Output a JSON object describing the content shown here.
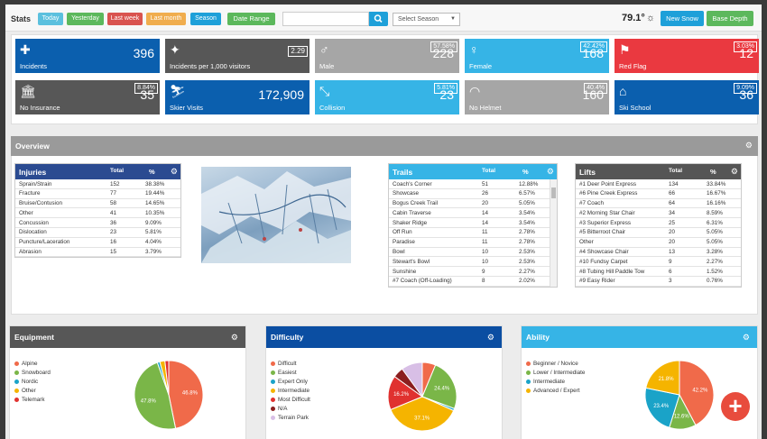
{
  "toolbar": {
    "stats_label": "Stats",
    "filters": [
      {
        "label": "Today",
        "color": "#5bc0de"
      },
      {
        "label": "Yesterday",
        "color": "#5cb85c"
      },
      {
        "label": "Last week",
        "color": "#d9534f"
      },
      {
        "label": "Last month",
        "color": "#f0ad4e"
      },
      {
        "label": "Season",
        "color": "#1ea0d9"
      }
    ],
    "date_range_label": "Date Range",
    "search_placeholder": "",
    "season_select": "Select Season",
    "temperature": "79.1°",
    "new_snow_label": "New Snow",
    "base_depth_label": "Base Depth"
  },
  "tiles": [
    {
      "label": "Incidents",
      "value": "396",
      "badge": "",
      "color": "#0b5fae",
      "icon": "first-aid-icon",
      "glyph": "✚"
    },
    {
      "label": "Incidents per 1,000 visitors",
      "value": "",
      "badge": "2.29",
      "color": "#575757",
      "icon": "magic-wand-icon",
      "glyph": "✦"
    },
    {
      "label": "Male",
      "value": "228",
      "badge": "57.58%",
      "color": "#a6a6a6",
      "icon": "male-icon",
      "glyph": "♂"
    },
    {
      "label": "Female",
      "value": "168",
      "badge": "42.42%",
      "color": "#36b4e6",
      "icon": "female-icon",
      "glyph": "♀"
    },
    {
      "label": "Red Flag",
      "value": "12",
      "badge": "3.03%",
      "color": "#ea3940",
      "icon": "flag-icon",
      "glyph": "⚑"
    },
    {
      "label": "No Insurance",
      "value": "35",
      "badge": "8.84%",
      "color": "#575757",
      "icon": "bank-icon",
      "glyph": "🏛"
    },
    {
      "label": "Skier Visits",
      "value": "172,909",
      "badge": "",
      "color": "#0b5fae",
      "icon": "skier-icon",
      "glyph": "⛷"
    },
    {
      "label": "Collision",
      "value": "23",
      "badge": "5.81%",
      "color": "#36b4e6",
      "icon": "collision-icon",
      "glyph": "⤡"
    },
    {
      "label": "No Helmet",
      "value": "160",
      "badge": "40.4%",
      "color": "#a6a6a6",
      "icon": "helmet-icon",
      "glyph": "◠"
    },
    {
      "label": "Ski School",
      "value": "36",
      "badge": "9.09%",
      "color": "#0b5fae",
      "icon": "home-icon",
      "glyph": "⌂"
    }
  ],
  "overview": {
    "title": "Overview"
  },
  "injuries": {
    "title": "Injuries",
    "col_total": "Total",
    "col_pct": "%",
    "color": "#2b4b91",
    "rows": [
      [
        "Sprain/Strain",
        "152",
        "38.38%"
      ],
      [
        "Fracture",
        "77",
        "19.44%"
      ],
      [
        "Bruise/Contusion",
        "58",
        "14.65%"
      ],
      [
        "Other",
        "41",
        "10.35%"
      ],
      [
        "Concussion",
        "36",
        "9.09%"
      ],
      [
        "Dislocation",
        "23",
        "5.81%"
      ],
      [
        "Puncture/Laceration",
        "16",
        "4.04%"
      ],
      [
        "Abrasion",
        "15",
        "3.79%"
      ]
    ]
  },
  "trails": {
    "title": "Trails",
    "col_total": "Total",
    "col_pct": "%",
    "color": "#36b4e6",
    "rows": [
      [
        "Coach's Corner",
        "51",
        "12.88%"
      ],
      [
        "Showcase",
        "26",
        "6.57%"
      ],
      [
        "Bogus Creek Trail",
        "20",
        "5.05%"
      ],
      [
        "Cabin Traverse",
        "14",
        "3.54%"
      ],
      [
        "Shaker Ridge",
        "14",
        "3.54%"
      ],
      [
        "Off Run",
        "11",
        "2.78%"
      ],
      [
        "Paradise",
        "11",
        "2.78%"
      ],
      [
        "Bowl",
        "10",
        "2.53%"
      ],
      [
        "Stewart's Bowl",
        "10",
        "2.53%"
      ],
      [
        "Sunshine",
        "9",
        "2.27%"
      ],
      [
        "#7 Coach (Off-Loading)",
        "8",
        "2.02%"
      ]
    ]
  },
  "lifts": {
    "title": "Lifts",
    "col_total": "Total",
    "col_pct": "%",
    "color": "#555555",
    "rows": [
      [
        "#1 Deer Point Express",
        "134",
        "33.84%"
      ],
      [
        "#6 Pine Creek Express",
        "66",
        "16.67%"
      ],
      [
        "#7 Coach",
        "64",
        "16.16%"
      ],
      [
        "#2 Morning Star Chair",
        "34",
        "8.59%"
      ],
      [
        "#3 Superior Express",
        "25",
        "6.31%"
      ],
      [
        "#5 Bitterroot Chair",
        "20",
        "5.05%"
      ],
      [
        "Other",
        "20",
        "5.05%"
      ],
      [
        "#4 Showcase Chair",
        "13",
        "3.28%"
      ],
      [
        "#10 Fundsy Carpet",
        "9",
        "2.27%"
      ],
      [
        "#8 Tubing Hill Paddle Tow",
        "6",
        "1.52%"
      ],
      [
        "#9 Easy Rider",
        "3",
        "0.76%"
      ]
    ]
  },
  "chart_data": [
    {
      "type": "pie",
      "title": "Equipment",
      "categories": [
        "Alpine",
        "Snowboard",
        "Nordic",
        "Other",
        "Telemark"
      ],
      "values": [
        46.8,
        47.8,
        1.2,
        2.4,
        1.8
      ],
      "labels": [
        "46.8%",
        "47.8%",
        "",
        "",
        ""
      ],
      "colors": [
        "#f06a4a",
        "#7ab648",
        "#1aa3c8",
        "#f5b400",
        "#e0312f"
      ],
      "legend": "left"
    },
    {
      "type": "pie",
      "title": "Difficulty",
      "categories": [
        "Difficult",
        "Easiest",
        "Expert Only",
        "Intermediate",
        "Most Difficult",
        "N/A",
        "Terrain Park"
      ],
      "values": [
        6.3,
        24.4,
        1.0,
        37.1,
        16.2,
        5.0,
        10.0
      ],
      "labels": [
        "",
        "24.4%",
        "",
        "37.1%",
        "16.2%",
        "",
        ""
      ],
      "colors": [
        "#f06a4a",
        "#7ab648",
        "#1aa3c8",
        "#f5b400",
        "#e0312f",
        "#8b1f1f",
        "#d8bfe6"
      ],
      "legend": "left"
    },
    {
      "type": "pie",
      "title": "Ability",
      "categories": [
        "Beginner / Novice",
        "Lower / Intermediate",
        "Intermediate",
        "Advanced / Expert"
      ],
      "values": [
        42.2,
        12.6,
        23.4,
        21.8
      ],
      "labels": [
        "42.2%",
        "12.6%",
        "23.4%",
        "21.8%"
      ],
      "colors": [
        "#f06a4a",
        "#7ab648",
        "#1aa3c8",
        "#f5b400"
      ],
      "legend": "left"
    }
  ],
  "panel_colors": {
    "equipment": "#575757",
    "difficulty": "#0b4ea2",
    "ability": "#36b4e6"
  },
  "fab_label": "+"
}
